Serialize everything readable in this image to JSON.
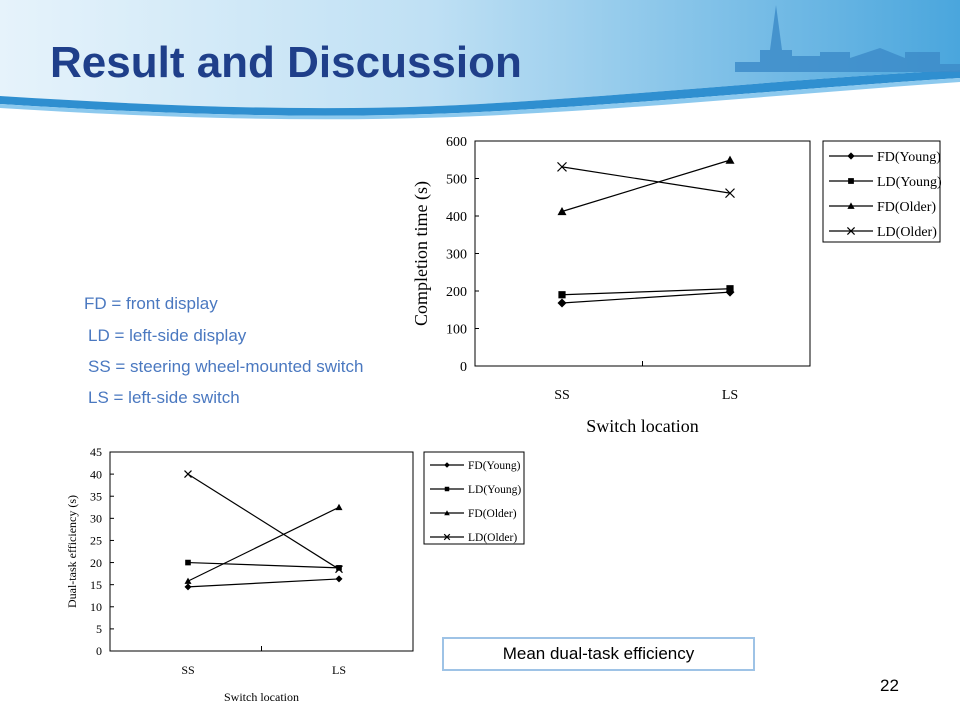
{
  "slide": {
    "title": "Result and Discussion",
    "page_number": "22",
    "caption": "Mean dual-task efficiency",
    "abbreviations": [
      "FD = front display",
      "LD = left-side display",
      "SS = steering wheel-mounted switch",
      "LS = left-side switch"
    ]
  },
  "colors": {
    "title": "#1f3f8a",
    "banner": "#5fb0e0",
    "abbr_text": "#4a78c0",
    "caption_border": "#9ec3e6"
  },
  "chart_data": [
    {
      "type": "line",
      "title": "",
      "xlabel": "Switch location",
      "ylabel": "Completion time (s)",
      "categories": [
        "SS",
        "LS"
      ],
      "ylim": [
        0,
        600
      ],
      "yticks": [
        0,
        100,
        200,
        300,
        400,
        500,
        600
      ],
      "grid": false,
      "legend": "right",
      "series": [
        {
          "name": "FD(Young)",
          "marker": "diamond",
          "values": [
            168,
            197
          ]
        },
        {
          "name": "LD(Young)",
          "marker": "square",
          "values": [
            190,
            206
          ]
        },
        {
          "name": "FD(Older)",
          "marker": "triangle",
          "values": [
            412,
            549
          ]
        },
        {
          "name": "LD(Older)",
          "marker": "x",
          "values": [
            531,
            461
          ]
        }
      ]
    },
    {
      "type": "line",
      "title": "",
      "xlabel": "Switch location",
      "ylabel": "Dual-task efficiency (s)",
      "categories": [
        "SS",
        "LS"
      ],
      "ylim": [
        0,
        45
      ],
      "yticks": [
        0,
        5,
        10,
        15,
        20,
        25,
        30,
        35,
        40,
        45
      ],
      "grid": false,
      "legend": "right",
      "series": [
        {
          "name": "FD(Young)",
          "marker": "diamond",
          "values": [
            14.5,
            16.3
          ]
        },
        {
          "name": "LD(Young)",
          "marker": "square",
          "values": [
            20.0,
            18.8
          ]
        },
        {
          "name": "FD(Older)",
          "marker": "triangle",
          "values": [
            15.8,
            32.5
          ]
        },
        {
          "name": "LD(Older)",
          "marker": "x",
          "values": [
            40.0,
            18.5
          ]
        }
      ]
    }
  ]
}
